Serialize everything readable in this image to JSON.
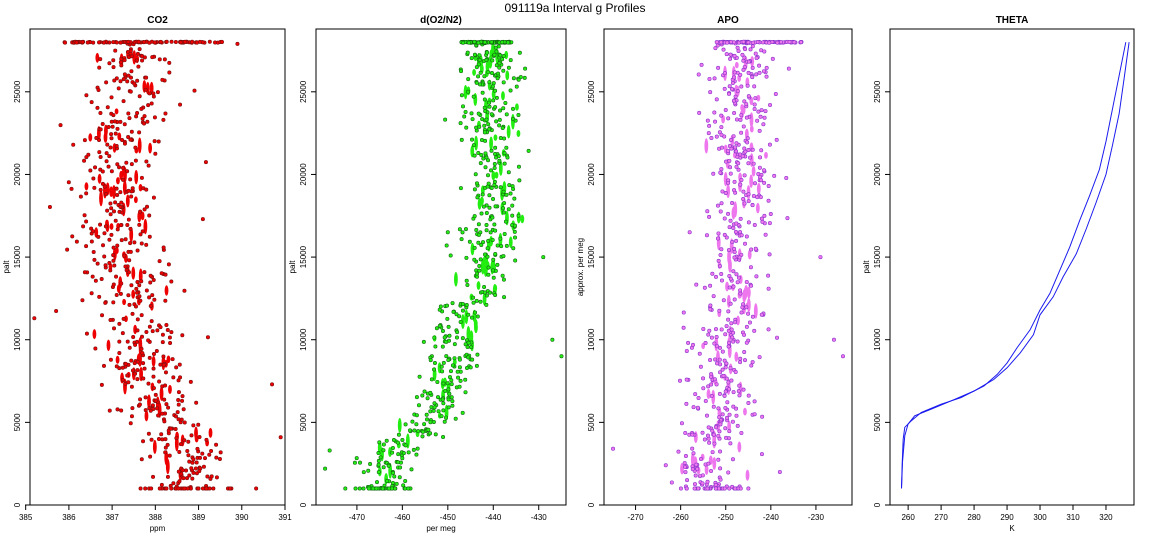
{
  "title": "091119a   Interval g Profiles",
  "chart_data": [
    {
      "type": "scatter",
      "title": "CO2",
      "xlabel": "ppm",
      "ylabel": "palt",
      "xlim": [
        385.1,
        391.0
      ],
      "ylim": [
        0,
        28800
      ],
      "xticks": [
        385,
        386,
        387,
        388,
        389,
        390,
        391
      ],
      "yticks": [
        0,
        5000,
        10000,
        15000,
        20000,
        25000
      ],
      "color": "#ee0000",
      "edge_color": "#7a1010",
      "profile": [
        [
          1000,
          388.9
        ],
        [
          2500,
          388.7
        ],
        [
          4000,
          388.6
        ],
        [
          5500,
          388.2
        ],
        [
          7000,
          387.9
        ],
        [
          8500,
          387.7
        ],
        [
          10000,
          387.6
        ],
        [
          11500,
          387.4
        ],
        [
          13000,
          387.4
        ],
        [
          14500,
          387.3
        ],
        [
          16000,
          387.1
        ],
        [
          17500,
          387.3
        ],
        [
          19000,
          387.1
        ],
        [
          20500,
          387.3
        ],
        [
          22000,
          387.1
        ],
        [
          23500,
          387.3
        ],
        [
          25000,
          387.4
        ],
        [
          26500,
          387.6
        ],
        [
          28000,
          387.5
        ]
      ],
      "spread": 0.5,
      "top_band": {
        "y": 28000,
        "x_range": [
          385.9,
          389.6
        ]
      },
      "outliers": [
        [
          385.2,
          11300
        ],
        [
          390.7,
          7300
        ],
        [
          390.9,
          4100
        ],
        [
          389.9,
          27900
        ],
        [
          389.1,
          17300
        ],
        [
          386.1,
          21800
        ]
      ]
    },
    {
      "type": "scatter",
      "title": "d(O2/N2)",
      "xlabel": "per meg",
      "ylabel": "palt",
      "xlim": [
        -479,
        -424
      ],
      "ylim": [
        0,
        28800
      ],
      "xticks": [
        -470,
        -460,
        -450,
        -440,
        -430
      ],
      "yticks": [
        0,
        5000,
        10000,
        15000,
        20000,
        25000
      ],
      "color": "#22ee11",
      "edge_color": "#116611",
      "profile": [
        [
          1000,
          -464
        ],
        [
          2500,
          -463
        ],
        [
          4000,
          -459
        ],
        [
          5500,
          -453
        ],
        [
          7000,
          -451
        ],
        [
          8500,
          -449
        ],
        [
          10000,
          -448
        ],
        [
          11500,
          -446
        ],
        [
          13000,
          -444
        ],
        [
          14500,
          -442
        ],
        [
          16000,
          -441
        ],
        [
          17500,
          -440
        ],
        [
          19000,
          -440
        ],
        [
          20500,
          -440
        ],
        [
          22000,
          -441
        ],
        [
          23500,
          -441
        ],
        [
          25000,
          -441
        ],
        [
          26500,
          -441
        ],
        [
          28000,
          -441
        ]
      ],
      "spread": 3.2,
      "top_band": {
        "y": 28000,
        "x_range": [
          -447,
          -436
        ]
      },
      "outliers": [
        [
          -476,
          3300
        ],
        [
          -477,
          2200
        ],
        [
          -425,
          9000
        ],
        [
          -427,
          10000
        ],
        [
          -429,
          15000
        ],
        [
          -433,
          26400
        ],
        [
          -450,
          16500
        ]
      ]
    },
    {
      "type": "scatter",
      "title": "APO",
      "xlabel": "",
      "ylabel": "approx. per meg",
      "xlim": [
        -277,
        -222
      ],
      "ylim": [
        0,
        28800
      ],
      "xticks": [
        -270,
        -260,
        -250,
        -240,
        -230
      ],
      "yticks": [
        0,
        5000,
        10000,
        15000,
        20000,
        25000
      ],
      "color": "#ee77ee",
      "edge_color": "#8833cc",
      "profile": [
        [
          1000,
          -254
        ],
        [
          2500,
          -255
        ],
        [
          4000,
          -253
        ],
        [
          5500,
          -251
        ],
        [
          7000,
          -251
        ],
        [
          8500,
          -250
        ],
        [
          10000,
          -249
        ],
        [
          11500,
          -248
        ],
        [
          13000,
          -248
        ],
        [
          14500,
          -247
        ],
        [
          16000,
          -247
        ],
        [
          17500,
          -246
        ],
        [
          19000,
          -246
        ],
        [
          20500,
          -246
        ],
        [
          22000,
          -247
        ],
        [
          23500,
          -247
        ],
        [
          25000,
          -247
        ],
        [
          26500,
          -247
        ],
        [
          28000,
          -246
        ]
      ],
      "spread": 3.6,
      "top_band": {
        "y": 28000,
        "x_range": [
          -252,
          -233
        ]
      },
      "outliers": [
        [
          -275,
          3400
        ],
        [
          -224,
          9000
        ],
        [
          -226,
          10000
        ],
        [
          -229,
          15000
        ],
        [
          -236,
          26400
        ],
        [
          -258,
          16500
        ],
        [
          -238,
          2000
        ]
      ]
    },
    {
      "type": "line",
      "title": "THETA",
      "xlabel": "K",
      "ylabel": "palt",
      "xlim": [
        254.5,
        328.5
      ],
      "ylim": [
        0,
        28800
      ],
      "xticks": [
        260,
        270,
        280,
        290,
        300,
        310,
        320
      ],
      "yticks": [
        0,
        5000,
        10000,
        15000,
        20000,
        25000
      ],
      "color": "#1a1aee",
      "series": [
        {
          "points": [
            [
              258,
              1000
            ],
            [
              258.2,
              2500
            ],
            [
              258.5,
              4000
            ],
            [
              259,
              4700
            ],
            [
              261,
              5100
            ],
            [
              264,
              5600
            ],
            [
              270,
              6100
            ],
            [
              276,
              6500
            ],
            [
              283,
              7200
            ],
            [
              287,
              7900
            ],
            [
              290,
              8600
            ],
            [
              293,
              9500
            ],
            [
              297,
              10600
            ],
            [
              300,
              11800
            ],
            [
              303,
              12800
            ],
            [
              306,
              14200
            ],
            [
              309,
              15600
            ],
            [
              312,
              17200
            ],
            [
              315,
              18700
            ],
            [
              318,
              20300
            ],
            [
              320,
              22000
            ],
            [
              322,
              24000
            ],
            [
              324,
              26000
            ],
            [
              326,
              28000
            ]
          ]
        },
        {
          "points": [
            [
              258,
              1000
            ],
            [
              258.3,
              2600
            ],
            [
              259,
              4200
            ],
            [
              260,
              4900
            ],
            [
              262,
              5400
            ],
            [
              267,
              5800
            ],
            [
              273,
              6300
            ],
            [
              280,
              6900
            ],
            [
              286,
              7600
            ],
            [
              290,
              8300
            ],
            [
              294,
              9200
            ],
            [
              298,
              10300
            ],
            [
              300,
              11500
            ],
            [
              304,
              12600
            ],
            [
              307,
              13800
            ],
            [
              311,
              15200
            ],
            [
              314,
              16700
            ],
            [
              317,
              18300
            ],
            [
              320,
              20000
            ],
            [
              322,
              21800
            ],
            [
              324,
              23700
            ],
            [
              325.5,
              25800
            ],
            [
              327,
              28000
            ]
          ]
        }
      ]
    }
  ]
}
